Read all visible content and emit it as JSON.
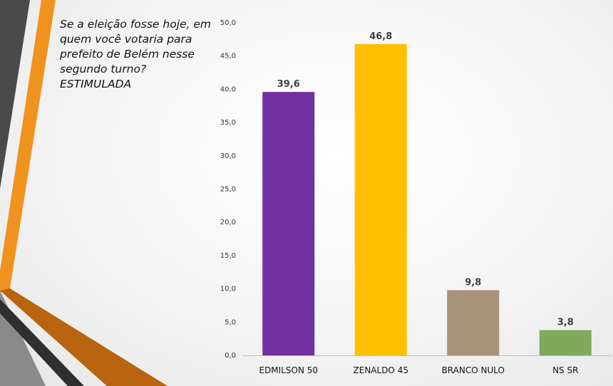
{
  "slide": {
    "question_lines": [
      "Se a eleição fosse hoje, em",
      "quem você votaria para",
      "prefeito de Belém nesse",
      "segundo turno?",
      "ESTIMULADA"
    ],
    "accent_colors": {
      "orange": "#F0921E",
      "dark_gray": "#4A4A4A",
      "brown": "#B8640F"
    }
  },
  "chart_data": {
    "type": "bar",
    "categories": [
      "EDMILSON 50",
      "ZENALDO 45",
      "BRANCO NULO",
      "NS SR"
    ],
    "values": [
      39.6,
      46.8,
      9.8,
      3.8
    ],
    "value_labels": [
      "39,6",
      "46,8",
      "9,8",
      "3,8"
    ],
    "colors": [
      "#7030A0",
      "#FFC000",
      "#A8927A",
      "#7FAA5E"
    ],
    "ylim": [
      0,
      50
    ],
    "y_ticks": [
      0,
      5,
      10,
      15,
      20,
      25,
      30,
      35,
      40,
      45,
      50
    ],
    "y_tick_labels": [
      "0,0",
      "5,0",
      "10,0",
      "15,0",
      "20,0",
      "25,0",
      "30,0",
      "35,0",
      "40,0",
      "45,0",
      "50,0"
    ],
    "grid": false,
    "title": "",
    "xlabel": "",
    "ylabel": ""
  }
}
